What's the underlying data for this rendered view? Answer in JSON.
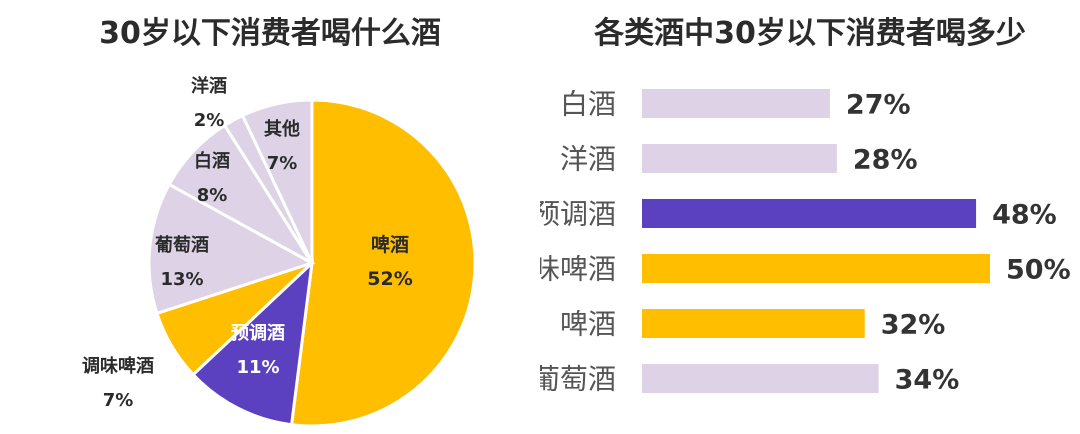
{
  "chart_data": [
    {
      "type": "pie",
      "title": "30岁以下消费者喝什么酒",
      "categories": [
        "啤酒",
        "预调酒",
        "调味啤酒",
        "葡萄酒",
        "白酒",
        "洋酒",
        "其他"
      ],
      "values": [
        52,
        11,
        7,
        13,
        8,
        2,
        7
      ],
      "value_labels": [
        "52%",
        "11%",
        "7%",
        "13%",
        "8%",
        "2%",
        "7%"
      ],
      "colors": [
        "#FFBE00",
        "#5B40BF",
        "#FFBE00",
        "#DED3E6",
        "#DED3E6",
        "#DED3E6",
        "#DED3E6"
      ],
      "label_colors": [
        "#2b2b2b",
        "#ffffff",
        "#2b2b2b",
        "#2b2b2b",
        "#2b2b2b",
        "#2b2b2b",
        "#2b2b2b"
      ]
    },
    {
      "type": "bar",
      "orientation": "horizontal",
      "title": "各类酒中30岁以下消费者喝多少",
      "categories": [
        "白酒",
        "洋酒",
        "预调酒",
        "调味啤酒",
        "啤酒",
        "葡萄酒"
      ],
      "values": [
        27,
        28,
        48,
        50,
        32,
        34
      ],
      "value_labels": [
        "27%",
        "28%",
        "48%",
        "50%",
        "32%",
        "34%"
      ],
      "colors": [
        "#DED3E6",
        "#DED3E6",
        "#5B40BF",
        "#FFBE00",
        "#FFBE00",
        "#DED3E6"
      ],
      "xlim": [
        0,
        50
      ]
    }
  ]
}
